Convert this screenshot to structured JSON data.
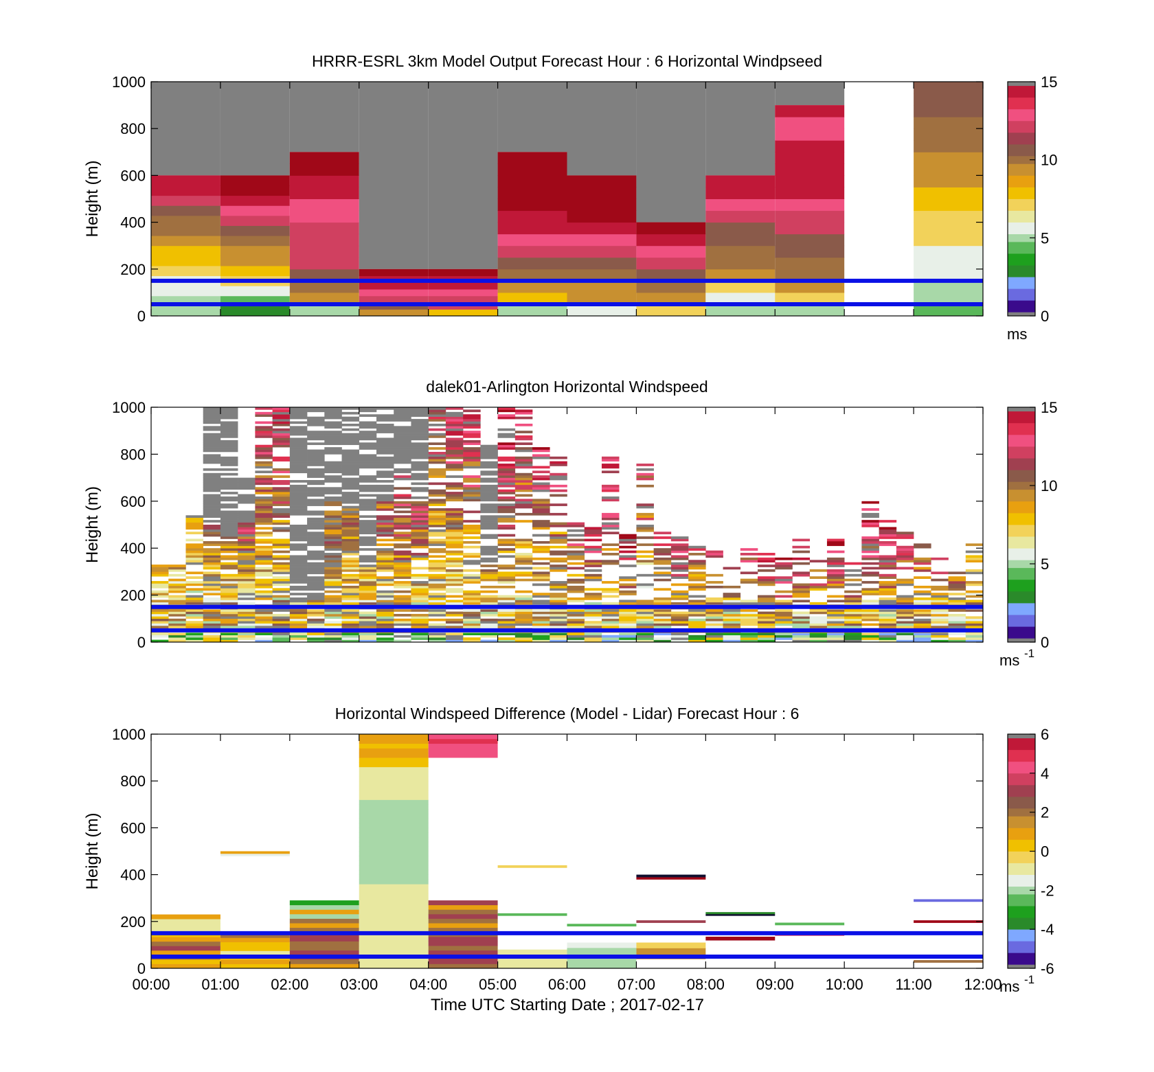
{
  "figure_background": "#ffffff",
  "reference_line_color": "#0a10e6",
  "missing_color": "#808080",
  "colormap": [
    "#808080",
    "#101030",
    "#3a0a8c",
    "#6a6ae0",
    "#7fa8ff",
    "#2a8a2a",
    "#1ea01e",
    "#5ab85a",
    "#a8d8a8",
    "#e8f0e8",
    "#e8e8a0",
    "#f2d25a",
    "#f0c000",
    "#e8a010",
    "#c89030",
    "#a07040",
    "#8a5a4a",
    "#a04050",
    "#d04060",
    "#f05080",
    "#e03050",
    "#c01838",
    "#a00818",
    "#808080"
  ],
  "chart_data": [
    {
      "type": "heatmap",
      "id": "model",
      "title": "HRRR-ESRL 3km Model Output   Forecast Hour : 6 Horizontal Windpseed",
      "ylabel": "Height (m)",
      "xlabel": "",
      "ylim": [
        0,
        1000
      ],
      "yticks": [
        "0",
        "200",
        "400",
        "600",
        "800",
        "1000"
      ],
      "colorbar": {
        "range": [
          0,
          15
        ],
        "ticks": [
          "0",
          "5",
          "10",
          "15"
        ],
        "unit": "ms",
        "unit_sup": ""
      },
      "reference_lines_m": [
        150,
        50
      ],
      "columns": [
        {
          "t": "00:00",
          "top": 600,
          "values": [
            5,
            5,
            6,
            6,
            7,
            8,
            8,
            9,
            10,
            10,
            11,
            12,
            14,
            14
          ]
        },
        {
          "t": "01:00",
          "top": 600,
          "values": [
            3,
            4,
            6,
            7,
            8,
            9,
            9,
            10,
            11,
            12,
            13,
            14,
            15,
            15
          ]
        },
        {
          "t": "02:00",
          "top": 700,
          "values": [
            5,
            9,
            10,
            11,
            12,
            12,
            12,
            12,
            13,
            13,
            14,
            14,
            15,
            15
          ]
        },
        {
          "t": "03:00",
          "top": 200,
          "values": [
            9,
            11,
            12,
            13,
            14,
            14,
            15
          ]
        },
        {
          "t": "04:00",
          "top": 200,
          "values": [
            8,
            12,
            12,
            13,
            14,
            14,
            15
          ]
        },
        {
          "t": "05:00",
          "top": 700,
          "values": [
            5,
            8,
            9,
            10,
            11,
            12,
            13,
            14,
            14,
            15,
            15,
            15,
            15,
            15
          ]
        },
        {
          "t": "06:00",
          "top": 600,
          "values": [
            6,
            9,
            9,
            10,
            11,
            12,
            13,
            14,
            15,
            15,
            15,
            15
          ]
        },
        {
          "t": "07:00",
          "top": 400,
          "values": [
            7,
            9,
            10,
            11,
            12,
            13,
            14,
            15
          ]
        },
        {
          "t": "08:00",
          "top": 600,
          "values": [
            5,
            6,
            7,
            9,
            10,
            10,
            11,
            11,
            12,
            13,
            14,
            14
          ]
        },
        {
          "t": "09:00",
          "top": 900,
          "values": [
            5,
            7,
            9,
            10,
            10,
            11,
            11,
            12,
            12,
            13,
            14,
            14,
            14,
            14,
            14,
            13,
            13,
            14
          ]
        },
        {
          "t": "10:00",
          "top": 0,
          "values": []
        },
        {
          "t": "11:00",
          "top": 1000,
          "values": [
            4,
            5,
            5,
            6,
            6,
            6,
            7,
            7,
            7,
            8,
            8,
            9,
            9,
            9,
            10,
            10,
            10,
            11,
            11,
            11
          ]
        }
      ]
    },
    {
      "type": "heatmap",
      "id": "lidar",
      "title": "dalek01-Arlington  Horizontal Windspeed",
      "ylabel": "Height (m)",
      "xlabel": "",
      "ylim": [
        0,
        1000
      ],
      "yticks": [
        "0",
        "200",
        "400",
        "600",
        "800",
        "1000"
      ],
      "colorbar": {
        "range": [
          0,
          15
        ],
        "ticks": [
          "0",
          "5",
          "10",
          "15"
        ],
        "unit": "ms",
        "unit_sup": "-1"
      },
      "reference_lines_m": [
        150,
        50
      ],
      "observation_columns": 48,
      "column_tops_m": [
        330,
        330,
        540,
        1000,
        1000,
        700,
        1000,
        1000,
        1000,
        1000,
        1000,
        1000,
        1000,
        1000,
        1000,
        1000,
        1000,
        1000,
        1000,
        850,
        1000,
        1000,
        850,
        800,
        520,
        500,
        800,
        460,
        760,
        470,
        460,
        430,
        410,
        340,
        400,
        410,
        360,
        440,
        410,
        440,
        340,
        600,
        520,
        470,
        420,
        360,
        320,
        460
      ],
      "column_missing_from_m": [
        1000,
        1000,
        700,
        500,
        450,
        510,
        1000,
        1000,
        180,
        180,
        600,
        600,
        320,
        600,
        720,
        600,
        1000,
        1000,
        1000,
        340,
        1000,
        1000,
        1000,
        1000,
        1000,
        1000,
        1000,
        1000,
        1000,
        1000,
        1000,
        1000,
        1000,
        1000,
        1000,
        1000,
        1000,
        1000,
        1000,
        1000,
        1000,
        1000,
        1000,
        1000,
        1000,
        1000,
        1000,
        1000
      ],
      "column_peak_speed": [
        6,
        6,
        7,
        13,
        12,
        11,
        11,
        11,
        13,
        13,
        12,
        12,
        12,
        12,
        14,
        13,
        10,
        11,
        11,
        13,
        13,
        11,
        12,
        11,
        11,
        11,
        12,
        12,
        10,
        11,
        11,
        10,
        10,
        10,
        11,
        12,
        12,
        12,
        11,
        12,
        11,
        12,
        12,
        11,
        10,
        10,
        9,
        8
      ],
      "fill_probability": [
        0.55,
        0.55,
        0.75,
        0.85,
        0.9,
        0.9,
        0.8,
        0.7,
        0.85,
        0.9,
        0.9,
        0.9,
        0.8,
        0.8,
        0.8,
        0.8,
        0.75,
        0.75,
        0.7,
        0.65,
        0.6,
        0.55,
        0.5,
        0.5,
        0.55,
        0.5,
        0.5,
        0.45,
        0.45,
        0.5,
        0.5,
        0.45,
        0.45,
        0.45,
        0.5,
        0.5,
        0.5,
        0.5,
        0.5,
        0.5,
        0.5,
        0.55,
        0.55,
        0.55,
        0.5,
        0.5,
        0.45,
        0.45
      ]
    },
    {
      "type": "heatmap",
      "id": "diff",
      "title": "Horizontal Windspeed Difference (Model - Lidar) Forecast Hour : 6",
      "ylabel": "Height (m)",
      "xlabel": "Time UTC  Starting Date ; 2017-02-17",
      "xticks": [
        "00:00",
        "01:00",
        "02:00",
        "03:00",
        "04:00",
        "05:00",
        "06:00",
        "07:00",
        "08:00",
        "09:00",
        "10:00",
        "11:00",
        "12:00"
      ],
      "ylim": [
        0,
        1000
      ],
      "yticks": [
        "0",
        "200",
        "400",
        "600",
        "800",
        "1000"
      ],
      "colorbar": {
        "range": [
          -6,
          6
        ],
        "ticks": [
          "-6",
          "-4",
          "-2",
          "0",
          "2",
          "4",
          "6"
        ],
        "unit": "ms",
        "unit_sup": "-1"
      },
      "reference_lines_m": [
        150,
        50
      ],
      "segments": [
        {
          "hour": 0,
          "from": 0,
          "to": 230,
          "values": [
            1,
            0,
            2,
            1,
            3,
            2,
            1,
            0,
            -1,
            -1,
            -1,
            1
          ]
        },
        {
          "hour": 1,
          "from": 0,
          "to": 150,
          "values": [
            0,
            1,
            0,
            -1,
            0,
            0,
            1,
            2
          ]
        },
        {
          "hour": 1,
          "from": 480,
          "to": 500,
          "values": [
            -1.5,
            1
          ]
        },
        {
          "hour": 2,
          "from": 0,
          "to": 290,
          "values": [
            1,
            2,
            3,
            3,
            2,
            2,
            3,
            3,
            2,
            1,
            2,
            -2,
            1,
            -2,
            -3
          ]
        },
        {
          "hour": 3,
          "from": 0,
          "to": 1000,
          "values": [
            -1,
            -1,
            -1,
            -1,
            -1,
            -1,
            -1,
            -1,
            -1,
            -1,
            -1,
            -1,
            -1,
            -1,
            -1,
            -1,
            -1,
            -1,
            -2,
            -2,
            -2,
            -2,
            -2,
            -2,
            -2,
            -2,
            -2,
            -2,
            -2,
            -2,
            -2,
            -2,
            -2,
            -2,
            -2,
            -2,
            -1,
            -1,
            -1,
            -1,
            -1,
            -1,
            -1,
            0,
            0,
            1,
            1,
            0,
            1,
            1
          ]
        },
        {
          "hour": 4,
          "from": 0,
          "to": 290,
          "values": [
            2,
            3,
            3,
            3,
            2,
            3,
            3,
            2,
            2,
            1,
            2,
            3,
            2,
            1,
            3
          ]
        },
        {
          "hour": 4,
          "from": 900,
          "to": 1000,
          "values": [
            4,
            4,
            4,
            5,
            4
          ]
        },
        {
          "hour": 5,
          "from": 0,
          "to": 80,
          "values": [
            -1,
            -1,
            -1
          ]
        },
        {
          "hour": 5,
          "from": 225,
          "to": 235,
          "values": [
            -2.5
          ]
        },
        {
          "hour": 5,
          "from": 430,
          "to": 440,
          "values": [
            -0.5
          ]
        },
        {
          "hour": 6,
          "from": 0,
          "to": 110,
          "values": [
            -2,
            -2,
            -2,
            -2,
            -1.5
          ]
        },
        {
          "hour": 6,
          "from": 180,
          "to": 190,
          "values": [
            -2.5
          ]
        },
        {
          "hour": 7,
          "from": 40,
          "to": 110,
          "values": [
            1.5,
            1.5,
            -0.5
          ]
        },
        {
          "hour": 7,
          "from": 195,
          "to": 205,
          "values": [
            3
          ]
        },
        {
          "hour": 7,
          "from": 380,
          "to": 400,
          "values": [
            6,
            -6
          ]
        },
        {
          "hour": 8,
          "from": 120,
          "to": 135,
          "values": [
            6
          ]
        },
        {
          "hour": 8,
          "from": 225,
          "to": 240,
          "values": [
            -6,
            -4
          ]
        },
        {
          "hour": 9,
          "from": 140,
          "to": 155,
          "values": [
            5
          ]
        },
        {
          "hour": 9,
          "from": 185,
          "to": 195,
          "values": [
            -2.5
          ]
        },
        {
          "hour": 11,
          "from": 25,
          "to": 35,
          "values": [
            2
          ]
        },
        {
          "hour": 11,
          "from": 195,
          "to": 205,
          "values": [
            6
          ]
        },
        {
          "hour": 11,
          "from": 285,
          "to": 295,
          "values": [
            -5
          ]
        }
      ]
    }
  ]
}
